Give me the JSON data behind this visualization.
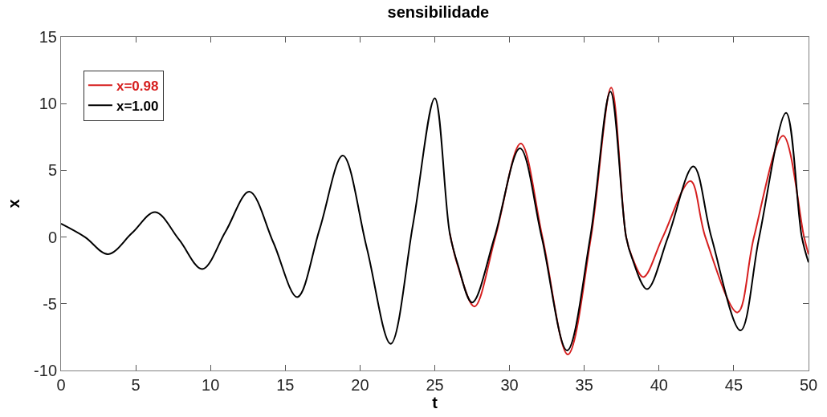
{
  "chart_data": {
    "type": "line",
    "title": "sensibilidade",
    "xlabel": "t",
    "ylabel": "x",
    "xlim": [
      0,
      50
    ],
    "ylim": [
      -10,
      15
    ],
    "xticks": [
      0,
      5,
      10,
      15,
      20,
      25,
      30,
      35,
      40,
      45,
      50
    ],
    "yticks": [
      -10,
      -5,
      0,
      5,
      10,
      15
    ],
    "grid": false,
    "legend": "top left",
    "marker": "none",
    "line_style": "solid",
    "series": [
      {
        "name": "x=0.98",
        "color": "#d61f1f",
        "x": [
          26.0,
          26.55,
          27.65,
          29.05,
          30.75,
          32.2,
          33.9,
          35.45,
          36.8,
          37.8,
          38.2,
          38.95,
          40.25,
          42.1,
          43.1,
          45.25,
          46.35,
          48.3,
          49.7,
          50
        ],
        "values": [
          0.3,
          -2.2,
          -5.2,
          0,
          7.0,
          0,
          -8.8,
          0,
          11.2,
          0,
          -1.5,
          -3.0,
          0,
          4.2,
          0,
          -5.65,
          0,
          7.6,
          0,
          -1.3
        ]
      },
      {
        "name": "x=1.00",
        "color": "#000000",
        "x": [
          0,
          1.6,
          3.15,
          4.75,
          6.3,
          7.9,
          9.45,
          11.0,
          12.6,
          14.2,
          15.8,
          17.3,
          18.85,
          20.45,
          22.05,
          23.55,
          25.0,
          26.0,
          26.55,
          27.5,
          29.0,
          30.7,
          32.15,
          33.85,
          35.4,
          36.75,
          37.8,
          38.2,
          39.2,
          40.6,
          42.3,
          43.5,
          45.45,
          46.7,
          48.5,
          49.55,
          50
        ],
        "values": [
          1.0,
          0,
          -1.28,
          0.3,
          1.87,
          -0.2,
          -2.4,
          0.4,
          3.4,
          -0.4,
          -4.5,
          0.6,
          6.1,
          -0.8,
          -8.0,
          1.0,
          10.4,
          0.3,
          -2.1,
          -4.9,
          0,
          6.65,
          0,
          -8.5,
          0,
          10.9,
          0,
          -1.6,
          -3.9,
          0,
          5.3,
          0,
          -7.0,
          0,
          9.3,
          0,
          -1.9
        ]
      }
    ]
  }
}
